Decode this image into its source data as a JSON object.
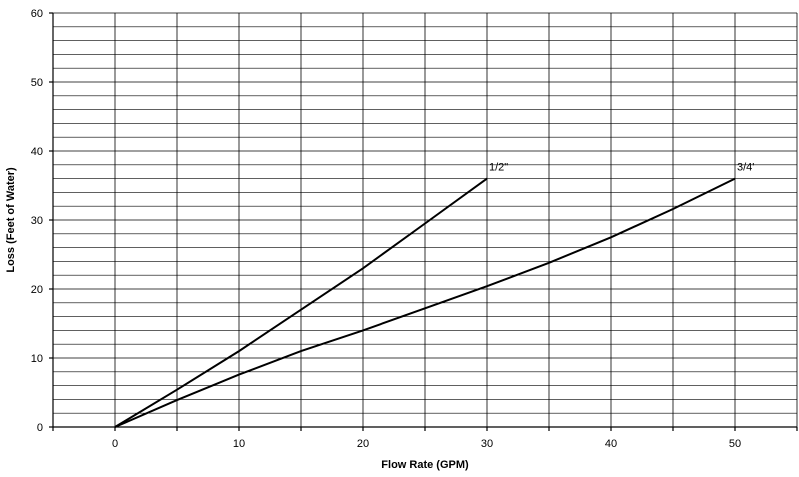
{
  "chart_data": {
    "type": "line",
    "title": "",
    "xlabel": "Flow Rate (GPM)",
    "ylabel": "Loss (Feet of Water)",
    "xlim": [
      -5,
      55
    ],
    "ylim": [
      0,
      60
    ],
    "x_ticks": [
      0,
      10,
      20,
      30,
      40,
      50
    ],
    "y_ticks": [
      0,
      10,
      20,
      30,
      40,
      50,
      60
    ],
    "x_grid_step": 5,
    "y_grid_step": 2,
    "grid": true,
    "legend": "none",
    "series": [
      {
        "name": "1/2\"",
        "color": "#000000",
        "points": [
          [
            0,
            0
          ],
          [
            5,
            5.4
          ],
          [
            10,
            11
          ],
          [
            15,
            17
          ],
          [
            20,
            23
          ],
          [
            25,
            29.5
          ],
          [
            30,
            36
          ]
        ]
      },
      {
        "name": "3/4'",
        "color": "#000000",
        "points": [
          [
            0,
            0
          ],
          [
            5,
            3.9
          ],
          [
            10,
            7.6
          ],
          [
            15,
            11
          ],
          [
            20,
            14
          ],
          [
            25,
            17.2
          ],
          [
            30,
            20.4
          ],
          [
            35,
            23.8
          ],
          [
            40,
            27.5
          ],
          [
            45,
            31.6
          ],
          [
            50,
            36
          ]
        ]
      }
    ]
  }
}
